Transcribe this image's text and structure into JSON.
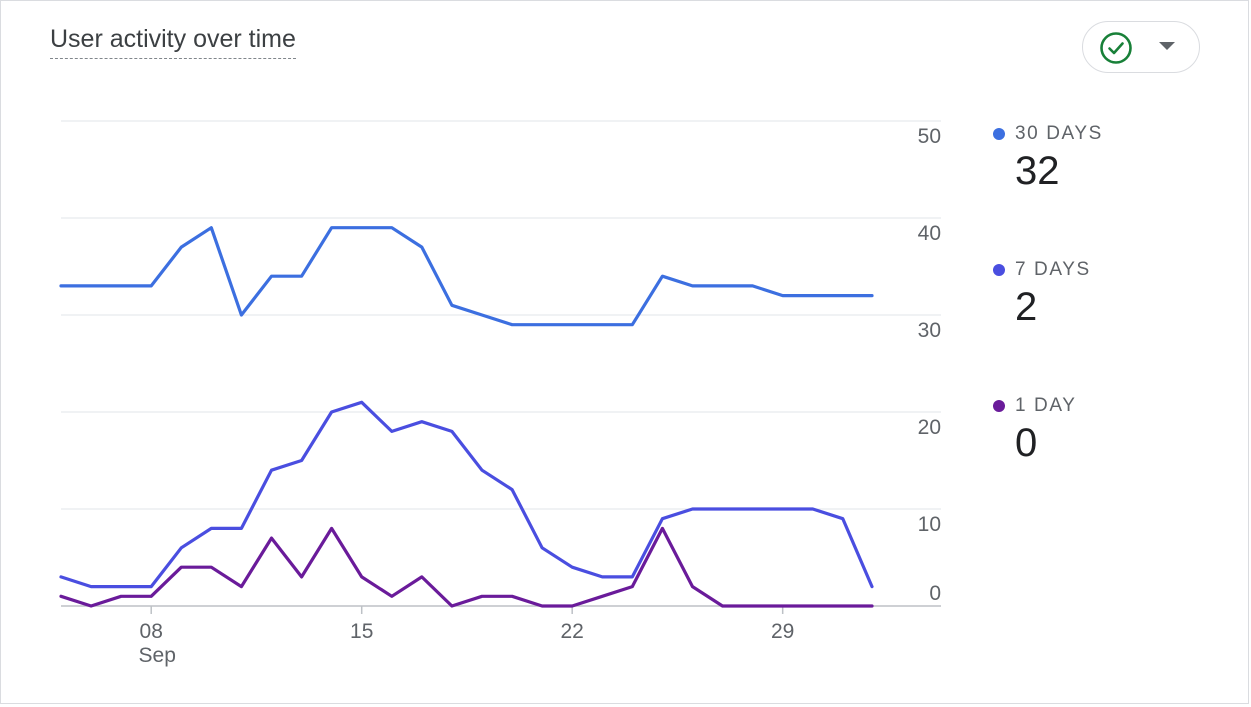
{
  "card": {
    "title": "User activity over time"
  },
  "compare_button": {
    "icon": "check-circle-icon",
    "caret_icon": "caret-down-icon",
    "check_color": "#188038"
  },
  "legend": [
    {
      "label": "30 DAYS",
      "value": "32",
      "color": "#3c6fe0"
    },
    {
      "label": "7 DAYS",
      "value": "2",
      "color": "#4a4ee0"
    },
    {
      "label": "1 DAY",
      "value": "0",
      "color": "#6a1b9a"
    }
  ],
  "chart_data": {
    "type": "line",
    "x_dates": [
      "2023-09-05",
      "2023-09-06",
      "2023-09-07",
      "2023-09-08",
      "2023-09-09",
      "2023-09-10",
      "2023-09-11",
      "2023-09-12",
      "2023-09-13",
      "2023-09-14",
      "2023-09-15",
      "2023-09-16",
      "2023-09-17",
      "2023-09-18",
      "2023-09-19",
      "2023-09-20",
      "2023-09-21",
      "2023-09-22",
      "2023-09-23",
      "2023-09-24",
      "2023-09-25",
      "2023-09-26",
      "2023-09-27",
      "2023-09-28",
      "2023-09-29",
      "2023-09-30",
      "2023-10-01",
      "2023-10-02"
    ],
    "x_tick_labels": [
      {
        "date": "2023-09-08",
        "label": "08",
        "sublabel": "Sep"
      },
      {
        "date": "2023-09-15",
        "label": "15",
        "sublabel": ""
      },
      {
        "date": "2023-09-22",
        "label": "22",
        "sublabel": ""
      },
      {
        "date": "2023-09-29",
        "label": "29",
        "sublabel": ""
      }
    ],
    "y_ticks": [
      0,
      10,
      20,
      30,
      40,
      50
    ],
    "ylim": [
      0,
      50
    ],
    "y_axis_side": "right",
    "grid": true,
    "legend_position": "right",
    "series": [
      {
        "name": "30 DAYS",
        "color": "#3c6fe0",
        "values": [
          33,
          33,
          33,
          33,
          37,
          39,
          30,
          34,
          34,
          39,
          39,
          39,
          37,
          31,
          30,
          29,
          29,
          29,
          29,
          29,
          34,
          33,
          33,
          33,
          32,
          32,
          32,
          32
        ]
      },
      {
        "name": "7 DAYS",
        "color": "#4a4ee0",
        "values": [
          3,
          2,
          2,
          2,
          6,
          8,
          8,
          14,
          15,
          20,
          21,
          18,
          19,
          18,
          14,
          12,
          6,
          4,
          3,
          3,
          9,
          10,
          10,
          10,
          10,
          10,
          9,
          2
        ]
      },
      {
        "name": "1 DAY",
        "color": "#6a1b9a",
        "values": [
          1,
          0,
          1,
          1,
          4,
          4,
          2,
          7,
          3,
          8,
          3,
          1,
          3,
          0,
          1,
          1,
          0,
          0,
          1,
          2,
          8,
          2,
          0,
          0,
          0,
          0,
          0,
          0
        ]
      }
    ]
  }
}
